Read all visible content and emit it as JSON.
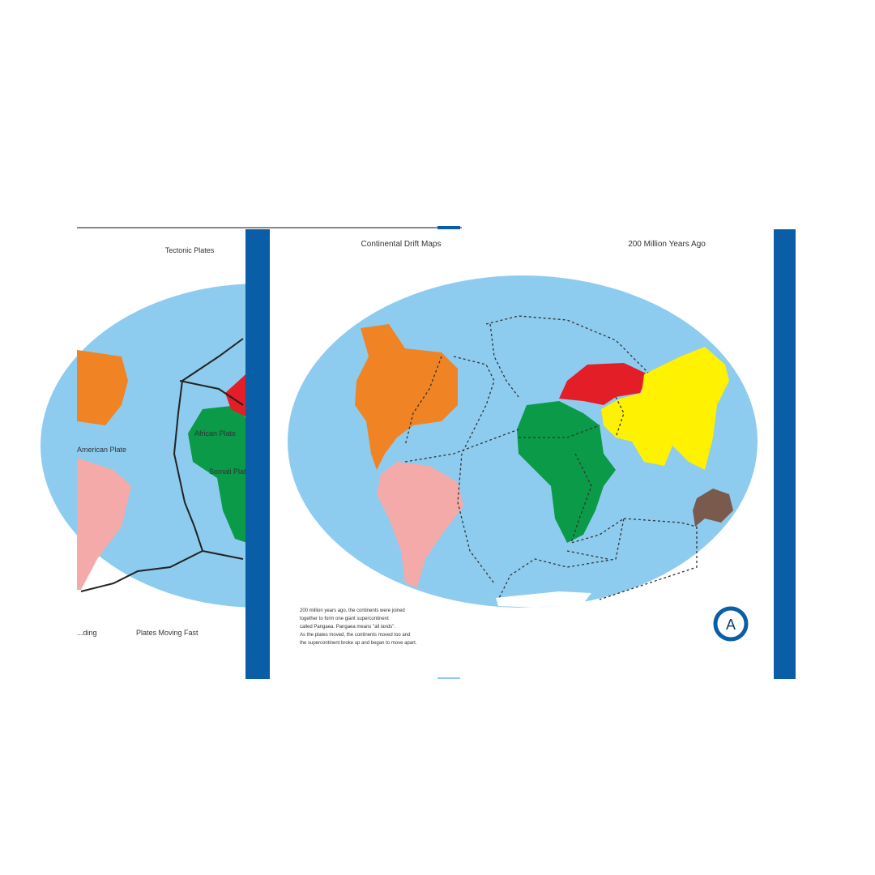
{
  "back_card": {
    "title": "Tectonic Plates",
    "labels": [
      "American Plate",
      "African Plate",
      "Somali Plate"
    ],
    "legend": [
      "...ding",
      "Plates Moving Fast"
    ]
  },
  "front_card": {
    "title": "Continental Drift Maps",
    "era": "200 Million Years Ago",
    "description": [
      "200 million years ago, the continents were joined",
      "together to form one giant supercontinent",
      "called Pangaea. Pangaea means \"all lands\".",
      "As the plates moved, the continents moved too and",
      "the supercontinent broke up and began to move apart."
    ],
    "badge": "A"
  },
  "colors": {
    "frame_blue": "#0a5ea8",
    "ocean": "#8dccef",
    "north_america": "#f08424",
    "south_america": "#f4aaa9",
    "africa": "#0a9a48",
    "europe": "#e41e26",
    "asia": "#fff200",
    "australia": "#7a5a4c"
  }
}
